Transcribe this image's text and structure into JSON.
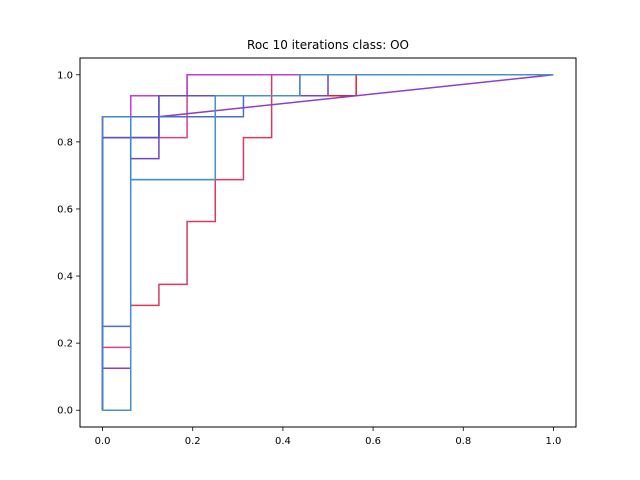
{
  "chart_data": {
    "type": "line",
    "title": "Roc 10 iterations class: OO",
    "xlabel": "",
    "ylabel": "",
    "xlim": [
      -0.05,
      1.05
    ],
    "ylim": [
      -0.05,
      1.05
    ],
    "xticks": [
      0.0,
      0.2,
      0.4,
      0.6,
      0.8,
      1.0
    ],
    "yticks": [
      0.0,
      0.2,
      0.4,
      0.6,
      0.8,
      1.0
    ],
    "xtick_labels": [
      "0.0",
      "0.2",
      "0.4",
      "0.6",
      "0.8",
      "1.0"
    ],
    "ytick_labels": [
      "0.0",
      "0.2",
      "0.4",
      "0.6",
      "0.8",
      "1.0"
    ],
    "grid": false,
    "legend": false,
    "series": [
      {
        "color": "#d62728",
        "x": [
          0,
          0,
          0.0625,
          0.0625,
          0.125,
          0.125,
          0.5,
          0.5,
          0.5625,
          0.5625,
          1.0
        ],
        "y": [
          0,
          0.875,
          0.875,
          0.9375,
          0.9375,
          0.9375,
          0.9375,
          0.9375,
          0.9375,
          1.0,
          1.0
        ]
      },
      {
        "color": "#d83a5e",
        "x": [
          0,
          0,
          0.0625,
          0.0625,
          0.125,
          0.125,
          0.1875,
          0.1875,
          0.25,
          0.25,
          0.3125,
          0.3125,
          0.375,
          0.375,
          1.0
        ],
        "y": [
          0,
          0.0,
          0.0,
          0.3125,
          0.3125,
          0.375,
          0.375,
          0.5625,
          0.5625,
          0.6875,
          0.6875,
          0.8125,
          0.8125,
          1.0,
          1.0
        ]
      },
      {
        "color": "#d8408e",
        "x": [
          0,
          0,
          0.0625,
          0.0625,
          0.125,
          0.125,
          0.1875,
          0.1875,
          1.0
        ],
        "y": [
          0,
          0.1875,
          0.1875,
          0.8125,
          0.8125,
          0.8125,
          0.8125,
          1.0,
          1.0
        ]
      },
      {
        "color": "#c240c8",
        "x": [
          0,
          0,
          0.0625,
          0.0625,
          0.1875,
          0.1875,
          1.0
        ],
        "y": [
          0,
          0.875,
          0.875,
          0.9375,
          0.9375,
          1.0,
          1.0
        ]
      },
      {
        "color": "#8e3fc4",
        "x": [
          0,
          0,
          0.0625,
          0.0625,
          0.125,
          0.125,
          1.0
        ],
        "y": [
          0,
          0.125,
          0.125,
          0.8125,
          0.8125,
          0.875,
          1.0
        ]
      },
      {
        "color": "#6f44c8",
        "x": [
          0,
          0,
          0.0625,
          0.0625,
          0.125,
          0.125,
          0.5,
          0.5,
          1.0
        ],
        "y": [
          0,
          0.8125,
          0.8125,
          0.75,
          0.75,
          0.9375,
          0.9375,
          1.0,
          1.0
        ]
      },
      {
        "color": "#5b52c8",
        "x": [
          0,
          0,
          0.0625,
          0.0625,
          0.125,
          0.125,
          0.4375,
          0.4375,
          1.0
        ],
        "y": [
          0,
          0.8125,
          0.8125,
          0.8125,
          0.8125,
          0.9375,
          0.9375,
          1.0,
          1.0
        ]
      },
      {
        "color": "#4a6ec8",
        "x": [
          0,
          0,
          0.0625,
          0.0625,
          0.25,
          0.25,
          0.3125,
          0.3125,
          0.4375,
          0.4375,
          1.0
        ],
        "y": [
          0,
          0.25,
          0.25,
          0.875,
          0.875,
          0.875,
          0.875,
          0.9375,
          0.9375,
          1.0,
          1.0
        ]
      },
      {
        "color": "#3f88c9",
        "x": [
          0,
          0,
          0.0625,
          0.0625,
          0.25,
          0.25,
          0.4375,
          0.4375,
          1.0
        ],
        "y": [
          0,
          0.875,
          0.875,
          0.6875,
          0.6875,
          0.9375,
          0.9375,
          1.0,
          1.0
        ]
      },
      {
        "color": "#4b90c8",
        "x": [
          0,
          0,
          0.0625,
          0.0625,
          0.25,
          0.25,
          0.4375,
          0.4375,
          1.0
        ],
        "y": [
          0,
          0.0,
          0.0,
          0.6875,
          0.6875,
          0.9375,
          0.9375,
          1.0,
          1.0
        ]
      }
    ]
  }
}
